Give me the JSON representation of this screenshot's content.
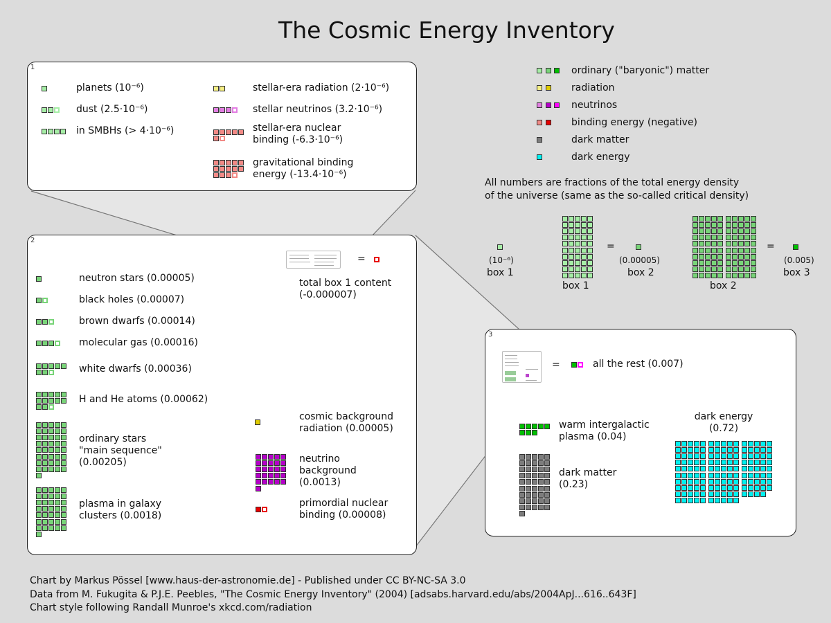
{
  "title": "The Cosmic Energy Inventory",
  "colors": {
    "green1": "#a6eea6",
    "green2": "#78d478",
    "green3": "#00c000",
    "yellow1": "#f6ef84",
    "yellow2": "#e0cc00",
    "violet1": "#e27de2",
    "violet2": "#b400c8",
    "violet3": "#ff00ff",
    "red1": "#f28a86",
    "red2": "#e80000",
    "gray": "#7c7c7c",
    "cyan": "#00f0f0"
  },
  "legend": [
    {
      "label": "ordinary (\"baryonic\") matter",
      "colors": [
        "#a6eea6",
        "#78d478",
        "#00c000"
      ]
    },
    {
      "label": "radiation",
      "colors": [
        "#f6ef84",
        "#e0cc00"
      ]
    },
    {
      "label": "neutrinos",
      "colors": [
        "#e27de2",
        "#b400c8",
        "#ff00ff"
      ]
    },
    {
      "label": "binding energy (negative)",
      "colors": [
        "#f28a86",
        "#e80000"
      ]
    },
    {
      "label": "dark matter",
      "colors": [
        "#7c7c7c"
      ]
    },
    {
      "label": "dark energy",
      "colors": [
        "#00f0f0"
      ]
    }
  ],
  "note": "All numbers are fractions of the total energy density\nof the universe (same as the so-called critical density)",
  "scale": {
    "box1_unit": "(10⁻⁶)",
    "box1_label": "box 1",
    "box2_unit": "(0.00005)",
    "box2_label": "box 2",
    "box3_unit": "(0.005)",
    "box3_label": "box 3",
    "equals": "=",
    "grid1_label": "box 1",
    "grid2_label": "box 2"
  },
  "box1": {
    "number": "1",
    "unit": 1e-06,
    "items": [
      {
        "label": "planets (10⁻⁶)",
        "value": 1e-06,
        "color": "#a6eea6"
      },
      {
        "label": "dust (2.5·10⁻⁶)",
        "value": 2.5e-06,
        "color": "#a6eea6"
      },
      {
        "label": "in SMBHs (> 4·10⁻⁶)",
        "value": 4e-06,
        "color": "#a6eea6"
      },
      {
        "label": "stellar-era radiation (2·10⁻⁶)",
        "value": 2e-06,
        "color": "#f6ef84"
      },
      {
        "label": "stellar neutrinos (3.2·10⁻⁶)",
        "value": 3.2e-06,
        "color": "#e27de2"
      },
      {
        "label": "stellar-era nuclear\nbinding (-6.3·10⁻⁶)",
        "value": -6.3e-06,
        "color": "#f28a86"
      },
      {
        "label": "gravitational binding\nenergy (-13.4·10⁻⁶)",
        "value": -1.34e-05,
        "color": "#f28a86"
      }
    ]
  },
  "box2": {
    "number": "2",
    "unit": 5e-05,
    "items": [
      {
        "label": "neutron stars (0.00005)",
        "value": 5e-05,
        "color": "#78d478"
      },
      {
        "label": "black holes (0.00007)",
        "value": 7e-05,
        "color": "#78d478"
      },
      {
        "label": "brown dwarfs (0.00014)",
        "value": 0.00014,
        "color": "#78d478"
      },
      {
        "label": "molecular gas (0.00016)",
        "value": 0.00016,
        "color": "#78d478"
      },
      {
        "label": "white dwarfs (0.00036)",
        "value": 0.00036,
        "color": "#78d478"
      },
      {
        "label": "H and He atoms (0.00062)",
        "value": 0.00062,
        "color": "#78d478"
      },
      {
        "label": "ordinary stars\n\"main sequence\"\n(0.00205)",
        "value": 0.00205,
        "color": "#78d478"
      },
      {
        "label": "plasma in galaxy\nclusters (0.0018)",
        "value": 0.0018,
        "color": "#78d478"
      },
      {
        "label": "total box 1 content\n    (-0.000007)",
        "value": -7e-06,
        "color": "#e80000"
      },
      {
        "label": "cosmic background\nradiation (0.00005)",
        "value": 5e-05,
        "color": "#e0cc00"
      },
      {
        "label": "neutrino\nbackground\n(0.0013)",
        "value": 0.0013,
        "color": "#b400c8"
      },
      {
        "label": "primordial nuclear\nbinding (0.00008)",
        "value": -8e-05,
        "color": "#e80000"
      }
    ],
    "equals": "="
  },
  "box3": {
    "number": "3",
    "unit": 0.005,
    "equals": "=",
    "items": [
      {
        "label": "all the rest (0.007)",
        "value": 0.007,
        "color": "#00c000",
        "partial_color": "#ff00ff"
      },
      {
        "label": "warm intergalactic\nplasma (0.04)",
        "value": 0.04,
        "color": "#00c000"
      },
      {
        "label": "dark matter\n    (0.23)",
        "value": 0.23,
        "color": "#7c7c7c"
      },
      {
        "label": "dark energy\n(0.72)",
        "value": 0.72,
        "color": "#00f0f0"
      }
    ]
  },
  "credits": [
    "Chart by Markus Pössel [www.haus-der-astronomie.de] - Published under CC BY-NC-SA 3.0",
    "Data from M. Fukugita & P.J.E. Peebles, \"The Cosmic Energy Inventory\" (2004) [adsabs.harvard.edu/abs/2004ApJ...616..643F]",
    "Chart style following Randall Munroe's xkcd.com/radiation"
  ]
}
